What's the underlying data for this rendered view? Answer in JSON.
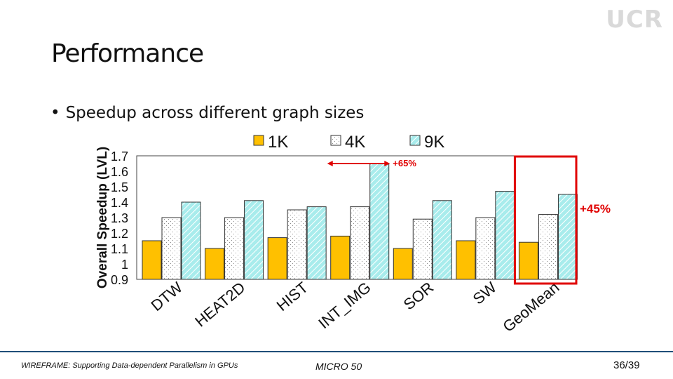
{
  "slide": {
    "logo": "UCR",
    "title": "Performance",
    "bullet": "Speedup across different graph sizes",
    "footer_left": "WIREFRAME: Supporting Data-dependent Parallelism in GPUs",
    "footer_center": "MICRO 50",
    "page_number": "36/39"
  },
  "colors": {
    "bar_1k": "#ffc000",
    "bar_4k_bg": "#ffffff",
    "bar_9k": "#a8ecec",
    "annotation_arrow": "#e00000",
    "highlight_box": "#e00000",
    "footer_rule": "#1f4e79"
  },
  "chart_data": {
    "type": "bar",
    "ylabel": "Overall Speedup (LVL)",
    "ylim": [
      0.9,
      1.7
    ],
    "yticks": [
      "1.7",
      "1.6",
      "1.5",
      "1.4",
      "1.3",
      "1.2",
      "1.1",
      "1",
      "0.9"
    ],
    "categories": [
      "DTW",
      "HEAT2D",
      "HIST",
      "INT_IMG",
      "SOR",
      "SW",
      "GeoMean"
    ],
    "series": [
      {
        "name": "1K",
        "values": [
          1.15,
          1.1,
          1.17,
          1.18,
          1.1,
          1.15,
          1.14
        ]
      },
      {
        "name": "4K",
        "values": [
          1.3,
          1.3,
          1.35,
          1.37,
          1.29,
          1.3,
          1.32
        ]
      },
      {
        "name": "9K",
        "values": [
          1.4,
          1.41,
          1.37,
          1.65,
          1.41,
          1.47,
          1.45
        ]
      }
    ],
    "annotations": [
      {
        "text": "+65%",
        "category": "INT_IMG"
      },
      {
        "text": "+45%",
        "category": "GeoMean"
      }
    ]
  }
}
